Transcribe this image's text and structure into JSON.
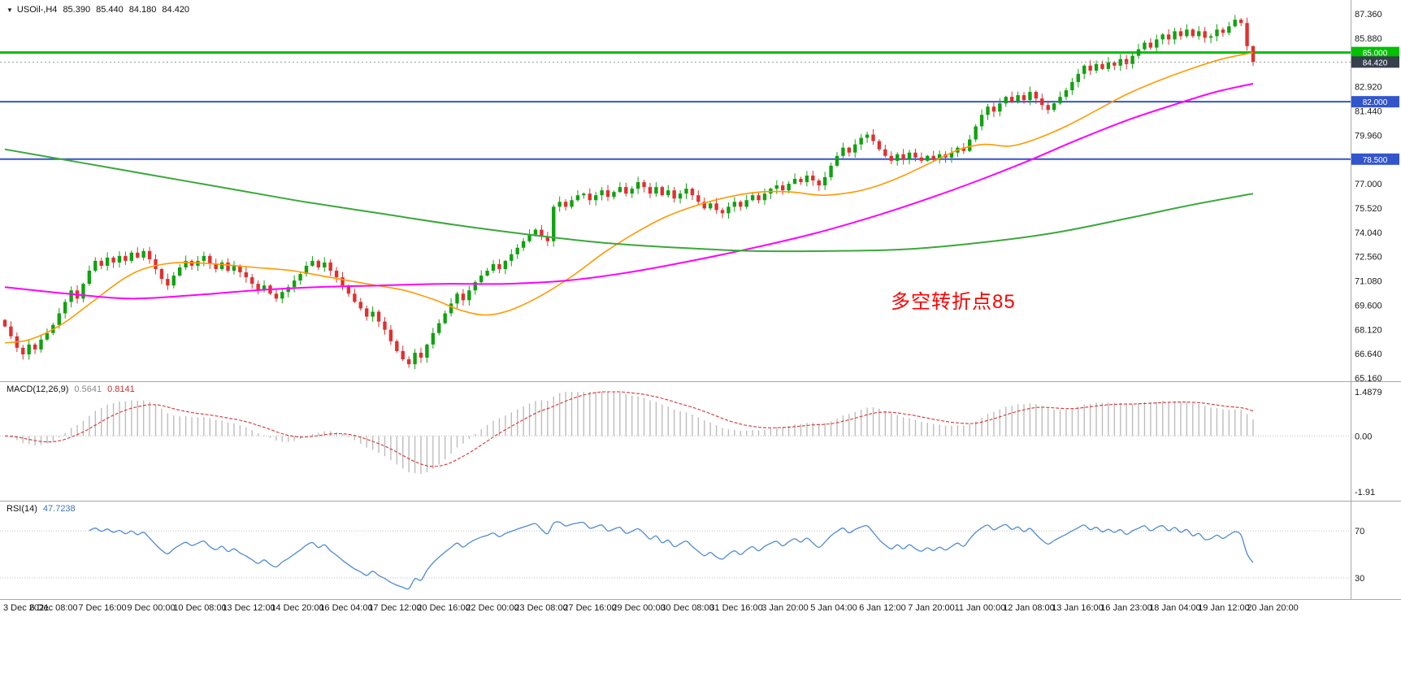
{
  "header": {
    "collapse_icon": "▼",
    "symbol": "USOil-,H4",
    "open": "85.390",
    "high": "85.440",
    "low": "84.180",
    "close": "84.420"
  },
  "annotation": {
    "text": "多空转折点85",
    "color": "#ff0000"
  },
  "indicators": {
    "macd": {
      "label": "MACD(12,26,9)",
      "main_value": "0.5641",
      "signal_value": "0.8141"
    },
    "rsi": {
      "label": "RSI(14)",
      "value": "47.7238"
    }
  },
  "chart_data": {
    "type": "candlestick",
    "symbol": "USOil-",
    "timeframe": "H4",
    "current_ohlc": {
      "open": 85.39,
      "high": 85.44,
      "low": 84.18,
      "close": 84.42
    },
    "y_axis": {
      "max": 87.36,
      "min": 65.16,
      "tick_step": 1.48,
      "tick_labels": [
        "87.360",
        "85.880",
        "84.400",
        "82.920",
        "81.440",
        "79.960",
        "78.480",
        "77.000",
        "75.520",
        "74.040",
        "72.560",
        "71.080",
        "69.600",
        "68.120",
        "66.640",
        "65.160"
      ]
    },
    "x_labels": [
      "3 Dec 2021",
      "6 Dec 08:00",
      "7 Dec 16:00",
      "9 Dec 00:00",
      "10 Dec 08:00",
      "13 Dec 12:00",
      "14 Dec 20:00",
      "16 Dec 04:00",
      "17 Dec 12:00",
      "20 Dec 16:00",
      "22 Dec 00:00",
      "23 Dec 08:00",
      "27 Dec 16:00",
      "29 Dec 00:00",
      "30 Dec 08:00",
      "31 Dec 16:00",
      "3 Jan 20:00",
      "5 Jan 04:00",
      "6 Jan 12:00",
      "7 Jan 20:00",
      "11 Jan 00:00",
      "12 Jan 08:00",
      "13 Jan 16:00",
      "16 Jan 23:00",
      "18 Jan 04:00",
      "19 Jan 12:00",
      "20 Jan 20:00"
    ],
    "closes": [
      68.3,
      67.7,
      67.0,
      66.6,
      67.2,
      66.9,
      67.5,
      67.9,
      68.4,
      69.1,
      69.8,
      70.5,
      70.0,
      70.9,
      71.7,
      72.3,
      72.0,
      72.5,
      72.2,
      72.6,
      72.3,
      72.8,
      72.5,
      72.9,
      72.4,
      71.8,
      71.2,
      70.8,
      71.4,
      71.9,
      72.3,
      72.0,
      72.3,
      72.6,
      72.1,
      71.8,
      72.2,
      71.7,
      72.0,
      71.6,
      71.3,
      70.9,
      70.5,
      70.8,
      70.3,
      70.0,
      70.4,
      70.7,
      71.1,
      71.5,
      72.0,
      72.3,
      71.9,
      72.2,
      71.7,
      71.3,
      70.8,
      70.3,
      69.8,
      69.4,
      68.9,
      69.2,
      68.6,
      68.1,
      67.4,
      66.8,
      66.3,
      66.0,
      66.7,
      66.4,
      67.2,
      67.9,
      68.5,
      69.1,
      69.7,
      70.3,
      69.9,
      70.5,
      71.0,
      71.4,
      71.7,
      72.1,
      71.8,
      72.3,
      72.7,
      73.1,
      73.5,
      73.9,
      74.2,
      73.8,
      73.5,
      75.6,
      75.9,
      75.6,
      76.0,
      76.3,
      76.4,
      76.0,
      76.3,
      76.6,
      76.2,
      76.5,
      76.8,
      76.4,
      76.7,
      77.1,
      76.8,
      76.4,
      76.8,
      76.3,
      76.6,
      76.1,
      76.4,
      76.7,
      76.3,
      75.9,
      75.5,
      75.8,
      75.4,
      75.2,
      75.6,
      75.9,
      75.6,
      76.0,
      76.3,
      76.0,
      76.4,
      76.7,
      76.9,
      76.6,
      77.0,
      77.3,
      77.1,
      77.5,
      77.2,
      76.9,
      77.4,
      78.1,
      78.7,
      79.2,
      78.9,
      79.4,
      79.8,
      80.0,
      79.6,
      79.1,
      78.7,
      78.4,
      78.8,
      78.5,
      78.9,
      78.6,
      78.4,
      78.7,
      78.5,
      78.8,
      78.6,
      78.9,
      79.2,
      79.0,
      79.7,
      80.5,
      81.2,
      81.7,
      81.4,
      81.9,
      82.3,
      82.0,
      82.4,
      82.1,
      82.6,
      82.2,
      81.8,
      81.5,
      81.9,
      82.3,
      82.7,
      83.2,
      83.7,
      84.2,
      83.9,
      84.3,
      84.0,
      84.4,
      84.2,
      84.6,
      84.3,
      84.8,
      85.2,
      85.6,
      85.3,
      85.8,
      86.1,
      85.8,
      86.3,
      86.0,
      86.4,
      86.0,
      86.3,
      85.9,
      86.0,
      86.4,
      86.2,
      86.6,
      87.0,
      86.8,
      85.39,
      84.42
    ],
    "hlines": [
      {
        "price": 85.0,
        "label": "85.000",
        "color": "#00c000",
        "width": 3
      },
      {
        "price": 82.0,
        "label": "82.000",
        "color": "#3355cc",
        "width": 2
      },
      {
        "price": 78.5,
        "label": "78.500",
        "color": "#3355cc",
        "width": 2
      }
    ],
    "price_marker": {
      "price": 84.42,
      "label": "84.420",
      "badge_color": "#38404e",
      "line_color": "#999999"
    },
    "ma_lines": [
      {
        "name": "ma-fast",
        "color": "#ff9900",
        "width": 1.6,
        "points": [
          [
            0,
            67.3
          ],
          [
            0.02,
            67.5
          ],
          [
            0.045,
            68.4
          ],
          [
            0.07,
            69.8
          ],
          [
            0.095,
            71.2
          ],
          [
            0.115,
            71.9
          ],
          [
            0.14,
            72.2
          ],
          [
            0.17,
            72.1
          ],
          [
            0.2,
            71.9
          ],
          [
            0.23,
            71.7
          ],
          [
            0.26,
            71.3
          ],
          [
            0.29,
            70.9
          ],
          [
            0.32,
            70.5
          ],
          [
            0.345,
            69.9
          ],
          [
            0.365,
            69.3
          ],
          [
            0.385,
            69.0
          ],
          [
            0.405,
            69.3
          ],
          [
            0.43,
            70.2
          ],
          [
            0.455,
            71.4
          ],
          [
            0.48,
            72.8
          ],
          [
            0.505,
            74.0
          ],
          [
            0.53,
            75.0
          ],
          [
            0.555,
            75.7
          ],
          [
            0.58,
            76.2
          ],
          [
            0.605,
            76.5
          ],
          [
            0.63,
            76.5
          ],
          [
            0.655,
            76.3
          ],
          [
            0.68,
            76.5
          ],
          [
            0.7,
            76.9
          ],
          [
            0.72,
            77.5
          ],
          [
            0.745,
            78.4
          ],
          [
            0.765,
            79.1
          ],
          [
            0.785,
            79.4
          ],
          [
            0.805,
            79.3
          ],
          [
            0.825,
            79.7
          ],
          [
            0.85,
            80.5
          ],
          [
            0.875,
            81.5
          ],
          [
            0.9,
            82.5
          ],
          [
            0.925,
            83.3
          ],
          [
            0.95,
            84.0
          ],
          [
            0.975,
            84.6
          ],
          [
            1,
            85.0
          ]
        ]
      },
      {
        "name": "ma-medium",
        "color": "#ff00ff",
        "width": 2,
        "points": [
          [
            0,
            70.7
          ],
          [
            0.05,
            70.3
          ],
          [
            0.1,
            70.0
          ],
          [
            0.15,
            70.2
          ],
          [
            0.2,
            70.5
          ],
          [
            0.25,
            70.7
          ],
          [
            0.3,
            70.8
          ],
          [
            0.35,
            70.9
          ],
          [
            0.4,
            70.9
          ],
          [
            0.45,
            71.1
          ],
          [
            0.5,
            71.6
          ],
          [
            0.55,
            72.3
          ],
          [
            0.6,
            73.1
          ],
          [
            0.65,
            74.0
          ],
          [
            0.7,
            75.1
          ],
          [
            0.74,
            76.1
          ],
          [
            0.78,
            77.2
          ],
          [
            0.82,
            78.4
          ],
          [
            0.86,
            79.7
          ],
          [
            0.9,
            80.9
          ],
          [
            0.94,
            81.9
          ],
          [
            0.97,
            82.6
          ],
          [
            1,
            83.1
          ]
        ]
      },
      {
        "name": "ma-slow",
        "color": "#3aa83a",
        "width": 2,
        "points": [
          [
            0,
            79.1
          ],
          [
            0.06,
            78.3
          ],
          [
            0.12,
            77.5
          ],
          [
            0.18,
            76.7
          ],
          [
            0.24,
            75.9
          ],
          [
            0.3,
            75.2
          ],
          [
            0.36,
            74.5
          ],
          [
            0.42,
            73.9
          ],
          [
            0.48,
            73.4
          ],
          [
            0.54,
            73.1
          ],
          [
            0.6,
            72.9
          ],
          [
            0.66,
            72.9
          ],
          [
            0.72,
            73.0
          ],
          [
            0.78,
            73.4
          ],
          [
            0.84,
            74.0
          ],
          [
            0.9,
            74.9
          ],
          [
            0.95,
            75.7
          ],
          [
            1,
            76.4
          ]
        ]
      }
    ],
    "colors": {
      "up": "#12a112",
      "down": "#e03030"
    },
    "macd": {
      "fast": 12,
      "slow": 26,
      "signal": 9,
      "main": 0.5641,
      "signal_value": 0.8141,
      "axis_max": 1.4879,
      "axis_min": -1.91,
      "axis_labels": {
        "max": "1.4879",
        "zero": "0.00",
        "min": "-1.91"
      },
      "histogram_color": "#bdbdbd",
      "signal_color": "#d23737"
    },
    "rsi": {
      "period": 14,
      "value": 47.7238,
      "levels": [
        70,
        30
      ],
      "level_labels": [
        "70",
        "30"
      ],
      "axis_max": 86,
      "axis_min": 14,
      "line_color": "#4f8ad2"
    }
  }
}
